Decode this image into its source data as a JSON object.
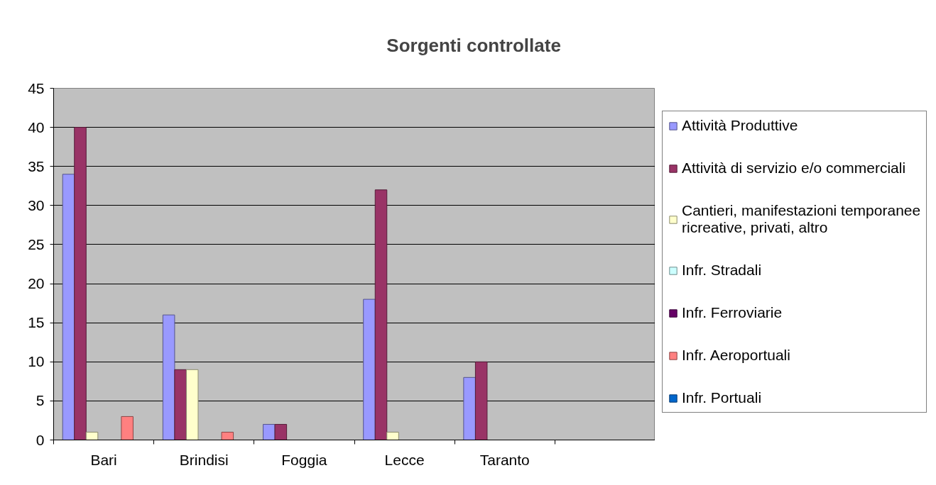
{
  "chart_data": {
    "type": "bar",
    "title": "Sorgenti controllate",
    "categories": [
      "Bari",
      "Brindisi",
      "Foggia",
      "Lecce",
      "Taranto",
      null
    ],
    "series": [
      {
        "name": "Attività Produttive",
        "color": "#9999ff",
        "values": [
          34,
          16,
          2,
          18,
          8,
          null
        ]
      },
      {
        "name": "Attività di servizio e/o commerciali",
        "color": "#993366",
        "values": [
          40,
          9,
          2,
          32,
          10,
          null
        ]
      },
      {
        "name": "Cantieri, manifestazioni temporanee ricreative, privati, altro",
        "color": "#ffffcc",
        "values": [
          1,
          9,
          0,
          1,
          0,
          null
        ]
      },
      {
        "name": "Infr. Stradali",
        "color": "#ccffff",
        "values": [
          0,
          0,
          0,
          0,
          0,
          null
        ]
      },
      {
        "name": "Infr. Ferroviarie",
        "color": "#660066",
        "values": [
          0,
          0,
          0,
          0,
          0,
          null
        ]
      },
      {
        "name": "Infr. Aeroportuali",
        "color": "#ff8080",
        "values": [
          3,
          1,
          0,
          0,
          0,
          null
        ]
      },
      {
        "name": "Infr. Portuali",
        "color": "#0066cc",
        "values": [
          0,
          0,
          0,
          0,
          0,
          null
        ]
      }
    ],
    "ylim": [
      0,
      45
    ],
    "yticks": [
      0,
      5,
      10,
      15,
      20,
      25,
      30,
      35,
      40,
      45
    ],
    "grid": "y",
    "legend": "right"
  }
}
